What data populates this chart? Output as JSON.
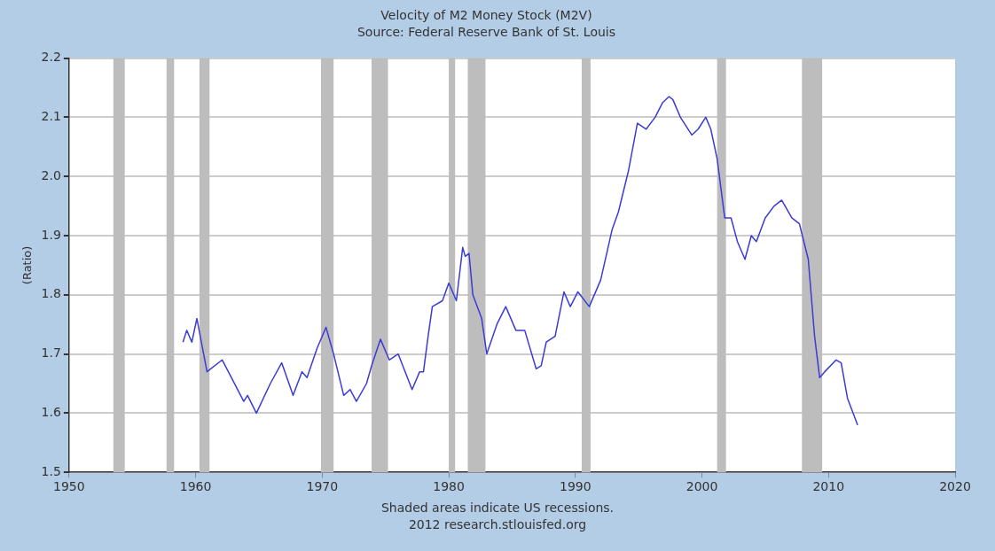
{
  "chart_data": {
    "type": "line",
    "title": "Velocity of M2 Money Stock (M2V)",
    "subtitle": "Source: Federal Reserve Bank of St. Louis",
    "ylabel": "(Ratio)",
    "annotations": [
      "Shaded areas indicate US recessions.",
      "2012 research.stlouisfed.org"
    ],
    "series": [
      {
        "color": "#3b3bd6",
        "x": [
          1959.0,
          1959.3,
          1959.7,
          1960.1,
          1960.9,
          1962.1,
          1963.8,
          1964.1,
          1964.8,
          1965.9,
          1966.8,
          1967.7,
          1968.4,
          1968.8,
          1969.6,
          1970.3,
          1970.9,
          1971.7,
          1972.2,
          1972.7,
          1973.5,
          1973.9,
          1974.6,
          1975.3,
          1976.0,
          1977.1,
          1977.7,
          1978.0,
          1978.4,
          1978.7,
          1979.5,
          1980.0,
          1980.6,
          1981.1,
          1981.3,
          1981.6,
          1981.9,
          1982.6,
          1983.0,
          1983.8,
          1984.5,
          1985.3,
          1986.0,
          1986.9,
          1987.3,
          1987.7,
          1988.4,
          1989.1,
          1989.6,
          1990.2,
          1991.1,
          1992.0,
          1992.9,
          1993.4,
          1994.2,
          1994.9,
          1995.6,
          1996.3,
          1996.9,
          1997.4,
          1997.7,
          1998.3,
          1999.2,
          1999.7,
          2000.3,
          2000.7,
          2001.2,
          2001.8,
          2002.3,
          2002.8,
          2003.4,
          2003.9,
          2004.3,
          2005.0,
          2005.7,
          2006.3,
          2007.1,
          2007.7,
          2008.4,
          2008.9,
          2009.3,
          2009.7,
          2010.6,
          2011.0,
          2011.5,
          2012.3
        ],
        "values": [
          1.72,
          1.74,
          1.72,
          1.76,
          1.67,
          1.69,
          1.62,
          1.63,
          1.6,
          1.65,
          1.685,
          1.63,
          1.67,
          1.66,
          1.71,
          1.745,
          1.7,
          1.63,
          1.64,
          1.62,
          1.65,
          1.68,
          1.725,
          1.69,
          1.7,
          1.64,
          1.67,
          1.67,
          1.735,
          1.78,
          1.79,
          1.82,
          1.79,
          1.88,
          1.865,
          1.87,
          1.8,
          1.76,
          1.7,
          1.75,
          1.78,
          1.74,
          1.74,
          1.675,
          1.68,
          1.72,
          1.73,
          1.805,
          1.78,
          1.805,
          1.78,
          1.825,
          1.91,
          1.94,
          2.01,
          2.09,
          2.08,
          2.1,
          2.125,
          2.135,
          2.13,
          2.1,
          2.07,
          2.08,
          2.1,
          2.08,
          2.03,
          1.93,
          1.93,
          1.89,
          1.86,
          1.9,
          1.89,
          1.93,
          1.95,
          1.96,
          1.93,
          1.92,
          1.86,
          1.73,
          1.66,
          1.67,
          1.69,
          1.685,
          1.625,
          1.58
        ]
      }
    ],
    "xlim": [
      1950,
      2020
    ],
    "xticks": [
      1950,
      1960,
      1970,
      1980,
      1990,
      2000,
      2010,
      2020
    ],
    "ylim": [
      1.5,
      2.2
    ],
    "yticks": [
      {
        "value": 1.5,
        "label": "1.5"
      },
      {
        "value": 1.6,
        "label": "1.6"
      },
      {
        "value": 1.7,
        "label": "1.7"
      },
      {
        "value": 1.8,
        "label": "1.8"
      },
      {
        "value": 1.9,
        "label": "1.9"
      },
      {
        "value": 2.0,
        "label": "2.0"
      },
      {
        "value": 2.1,
        "label": "2.1"
      },
      {
        "value": 2.2,
        "label": "2.2"
      }
    ],
    "bands": [
      {
        "axis": "x",
        "from": 1953.5,
        "to": 1954.4,
        "color": "#bdbdbd"
      },
      {
        "axis": "x",
        "from": 1957.7,
        "to": 1958.3,
        "color": "#bdbdbd"
      },
      {
        "axis": "x",
        "from": 1960.3,
        "to": 1961.1,
        "color": "#bdbdbd"
      },
      {
        "axis": "x",
        "from": 1969.9,
        "to": 1970.9,
        "color": "#bdbdbd"
      },
      {
        "axis": "x",
        "from": 1973.9,
        "to": 1975.2,
        "color": "#bdbdbd"
      },
      {
        "axis": "x",
        "from": 1980.0,
        "to": 1980.5,
        "color": "#bdbdbd"
      },
      {
        "axis": "x",
        "from": 1981.5,
        "to": 1982.9,
        "color": "#bdbdbd"
      },
      {
        "axis": "x",
        "from": 1990.5,
        "to": 1991.2,
        "color": "#bdbdbd"
      },
      {
        "axis": "x",
        "from": 2001.2,
        "to": 2001.9,
        "color": "#bdbdbd"
      },
      {
        "axis": "x",
        "from": 2007.9,
        "to": 2009.5,
        "color": "#bdbdbd"
      }
    ],
    "grid": "y",
    "legend": false,
    "marker": "none",
    "line_style": "solid"
  }
}
